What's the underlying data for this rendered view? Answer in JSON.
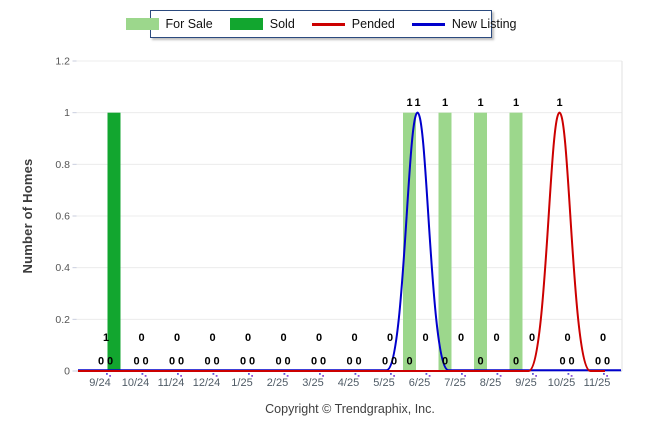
{
  "legend": {
    "items": [
      {
        "label": "For Sale",
        "swatch": "bar",
        "color": "#9cd78c"
      },
      {
        "label": "Sold",
        "swatch": "bar",
        "color": "#12a62f"
      },
      {
        "label": "Pended",
        "swatch": "line",
        "color": "#cc0000"
      },
      {
        "label": "New Listing",
        "swatch": "line",
        "color": "#0000cc"
      }
    ]
  },
  "chart_data": {
    "type": "combo",
    "categories": [
      "9/24",
      "10/24",
      "11/24",
      "12/24",
      "1/25",
      "2/25",
      "3/25",
      "4/25",
      "5/25",
      "6/25",
      "7/25",
      "8/25",
      "9/25",
      "10/25",
      "11/25"
    ],
    "series": [
      {
        "name": "For Sale",
        "type": "bar",
        "color": "#9cd78c",
        "values": [
          0,
          0,
          0,
          0,
          0,
          0,
          0,
          0,
          0,
          1,
          1,
          1,
          1,
          0,
          0
        ]
      },
      {
        "name": "Sold",
        "type": "bar",
        "color": "#12a62f",
        "values": [
          1,
          0,
          0,
          0,
          0,
          0,
          0,
          0,
          0,
          0,
          0,
          0,
          0,
          0,
          0
        ]
      },
      {
        "name": "Pended",
        "type": "line",
        "color": "#cc0000",
        "values": [
          0,
          0,
          0,
          0,
          0,
          0,
          0,
          0,
          0,
          0,
          0,
          0,
          0,
          1,
          0
        ]
      },
      {
        "name": "New Listing",
        "type": "line",
        "color": "#0000cc",
        "values": [
          0,
          0,
          0,
          0,
          0,
          0,
          0,
          0,
          0,
          1,
          0,
          0,
          0,
          0,
          0
        ]
      }
    ],
    "title": "",
    "xlabel": "",
    "ylabel": "Number of Homes",
    "ylim": [
      0,
      1.2
    ],
    "yticks": [
      "0",
      "0.2",
      "0.4",
      "0.6",
      "0.8",
      "1",
      "1.2"
    ],
    "grid": true,
    "legend_position": "top"
  },
  "footer": {
    "copyright": "Copyright © Trendgraphix, Inc."
  }
}
